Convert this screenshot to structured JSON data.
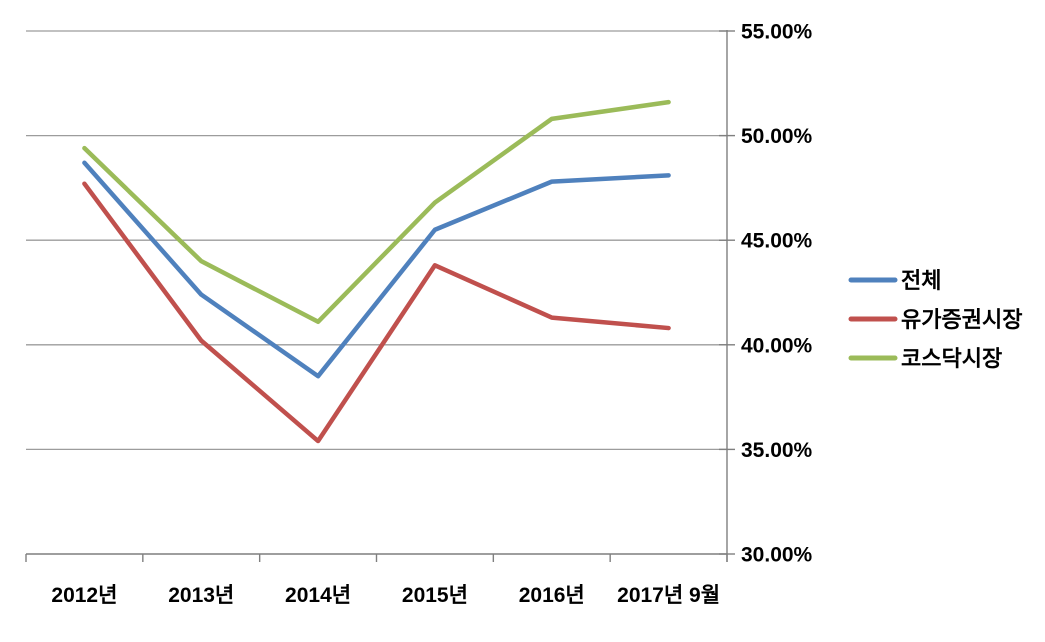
{
  "chart_data": {
    "type": "line",
    "title": "",
    "xlabel": "",
    "ylabel": "",
    "categories": [
      "2012년",
      "2013년",
      "2014년",
      "2015년",
      "2016년",
      "2017년 9월"
    ],
    "series": [
      {
        "id": "total",
        "name": "전체",
        "color": "#4F81BD",
        "values": [
          48.7,
          42.4,
          38.5,
          45.5,
          47.8,
          48.1
        ]
      },
      {
        "id": "kospi",
        "name": "유가증권시장",
        "color": "#C0504D",
        "values": [
          47.7,
          40.2,
          35.4,
          43.8,
          41.3,
          40.8
        ]
      },
      {
        "id": "kosdaq",
        "name": "코스닥시장",
        "color": "#9BBB59",
        "values": [
          49.4,
          44.0,
          41.1,
          46.8,
          50.8,
          51.6
        ]
      }
    ],
    "ylim": [
      30,
      55
    ],
    "ytick_step": 5,
    "ytick_labels": [
      "30.00%",
      "35.00%",
      "40.00%",
      "45.00%",
      "50.00%",
      "55.00%"
    ],
    "yaxis_side": "right",
    "grid": true,
    "legend_position": "right",
    "colors": {
      "gridline": "#9C9C9C",
      "axis": "#7F7F7F",
      "text": "#000000",
      "background": "#FFFFFF"
    }
  }
}
